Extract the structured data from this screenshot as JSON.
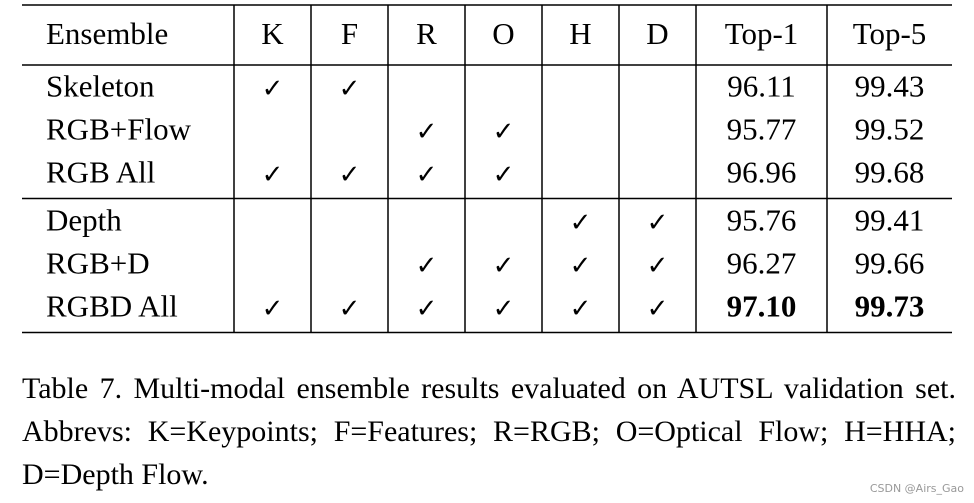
{
  "table": {
    "header": [
      "Ensemble",
      "K",
      "F",
      "R",
      "O",
      "H",
      "D",
      "Top-1",
      "Top-5"
    ],
    "check_symbol": "✓",
    "groups": [
      [
        {
          "name": "Skeleton",
          "checks": [
            true,
            true,
            false,
            false,
            false,
            false
          ],
          "top1": "96.11",
          "top5": "99.43"
        },
        {
          "name": "RGB+Flow",
          "checks": [
            false,
            false,
            true,
            true,
            false,
            false
          ],
          "top1": "95.77",
          "top5": "99.52"
        },
        {
          "name": "RGB All",
          "checks": [
            true,
            true,
            true,
            true,
            false,
            false
          ],
          "top1": "96.96",
          "top5": "99.68"
        }
      ],
      [
        {
          "name": "Depth",
          "checks": [
            false,
            false,
            false,
            false,
            true,
            true
          ],
          "top1": "95.76",
          "top5": "99.41"
        },
        {
          "name": "RGB+D",
          "checks": [
            false,
            false,
            true,
            true,
            true,
            true
          ],
          "top1": "96.27",
          "top5": "99.66"
        },
        {
          "name": "RGBD All",
          "checks": [
            true,
            true,
            true,
            true,
            true,
            true
          ],
          "top1": "97.10",
          "top5": "99.73",
          "bold": true
        }
      ]
    ]
  },
  "caption": "Table 7. Multi-modal ensemble results evaluated on AUTSL validation set.  Abbrevs: K=Keypoints; F=Features; R=RGB; O=Optical Flow; H=HHA; D=Depth Flow.",
  "watermark": "CSDN @Airs_Gao"
}
